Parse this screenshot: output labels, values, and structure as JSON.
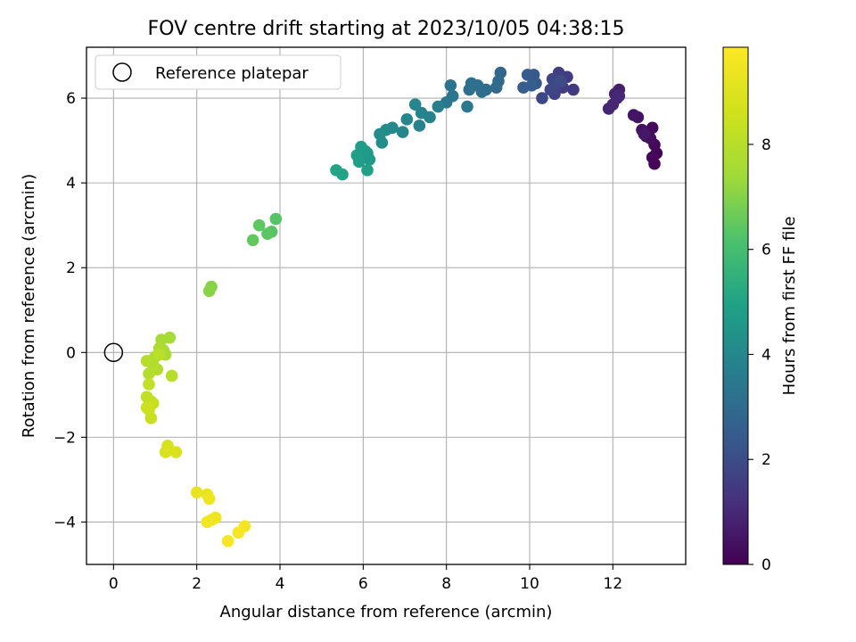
{
  "chart_data": {
    "type": "scatter",
    "title": "FOV centre drift starting at 2023/10/05 04:38:15",
    "xlabel": "Angular distance from reference (arcmin)",
    "ylabel": "Rotation from reference (arcmin)",
    "colorbar_label": "Hours from first FF file",
    "xlim": [
      -0.65,
      13.75
    ],
    "ylim": [
      -5.0,
      7.2
    ],
    "xticks": [
      0,
      2,
      4,
      6,
      8,
      10,
      12
    ],
    "yticks": [
      -4,
      -2,
      0,
      2,
      4,
      6
    ],
    "colorbar_range": [
      0,
      9.85
    ],
    "colorbar_ticks": [
      0,
      2,
      4,
      6,
      8
    ],
    "colormap": "viridis",
    "grid": true,
    "legend": {
      "location": "upper-left",
      "label": "Reference platepar"
    },
    "reference": {
      "x": 0,
      "y": 0
    },
    "points": [
      [
        13.05,
        4.7,
        0.05
      ],
      [
        13.0,
        4.45,
        0.1
      ],
      [
        12.95,
        4.6,
        0.15
      ],
      [
        13.0,
        4.9,
        0.2
      ],
      [
        12.95,
        5.3,
        0.25
      ],
      [
        12.9,
        5.05,
        0.3
      ],
      [
        12.8,
        5.1,
        0.35
      ],
      [
        12.7,
        5.25,
        0.4
      ],
      [
        12.6,
        5.55,
        0.45
      ],
      [
        12.5,
        5.6,
        0.5
      ],
      [
        12.75,
        5.15,
        0.55
      ],
      [
        12.15,
        6.2,
        0.75
      ],
      [
        12.1,
        6.0,
        0.8
      ],
      [
        12.05,
        6.1,
        0.85
      ],
      [
        11.9,
        5.75,
        0.9
      ],
      [
        12.0,
        5.85,
        0.95
      ],
      [
        12.15,
        6.05,
        1.0
      ],
      [
        11.05,
        6.2,
        1.45
      ],
      [
        10.9,
        6.5,
        1.5
      ],
      [
        10.8,
        6.25,
        1.55
      ],
      [
        10.7,
        6.6,
        1.6
      ],
      [
        10.65,
        6.3,
        1.65
      ],
      [
        10.6,
        6.1,
        1.7
      ],
      [
        10.55,
        6.45,
        1.75
      ],
      [
        10.5,
        6.2,
        1.8
      ],
      [
        10.3,
        6.0,
        1.85
      ],
      [
        10.6,
        6.35,
        1.9
      ],
      [
        10.75,
        6.4,
        1.95
      ],
      [
        10.15,
        6.35,
        2.35
      ],
      [
        10.1,
        6.55,
        2.4
      ],
      [
        9.95,
        6.55,
        2.45
      ],
      [
        9.85,
        6.25,
        2.5
      ],
      [
        10.05,
        6.3,
        2.55
      ],
      [
        9.3,
        6.6,
        2.85
      ],
      [
        9.25,
        6.4,
        2.9
      ],
      [
        9.2,
        6.25,
        2.95
      ],
      [
        8.95,
        6.2,
        3.0
      ],
      [
        8.85,
        6.15,
        3.05
      ],
      [
        8.75,
        6.3,
        3.1
      ],
      [
        8.6,
        6.35,
        3.15
      ],
      [
        8.55,
        6.2,
        3.2
      ],
      [
        8.1,
        6.3,
        3.3
      ],
      [
        8.15,
        6.05,
        3.35
      ],
      [
        8.0,
        5.9,
        3.4
      ],
      [
        8.5,
        5.8,
        3.45
      ],
      [
        7.8,
        5.8,
        3.7
      ],
      [
        7.6,
        5.55,
        3.75
      ],
      [
        7.4,
        5.65,
        3.8
      ],
      [
        7.35,
        5.35,
        3.85
      ],
      [
        7.25,
        5.85,
        3.9
      ],
      [
        7.05,
        5.5,
        3.95
      ],
      [
        6.95,
        5.2,
        4.0
      ],
      [
        6.7,
        5.3,
        4.05
      ],
      [
        6.55,
        5.25,
        4.1
      ],
      [
        6.4,
        5.15,
        4.15
      ],
      [
        6.45,
        4.95,
        4.2
      ],
      [
        6.1,
        4.7,
        4.6
      ],
      [
        6.15,
        4.55,
        4.65
      ],
      [
        6.05,
        4.75,
        4.7
      ],
      [
        5.95,
        4.85,
        4.75
      ],
      [
        5.85,
        4.65,
        4.8
      ],
      [
        5.9,
        4.5,
        4.85
      ],
      [
        6.1,
        4.3,
        4.9
      ],
      [
        5.5,
        4.2,
        5.0
      ],
      [
        5.35,
        4.3,
        5.05
      ],
      [
        3.9,
        3.15,
        6.3
      ],
      [
        3.8,
        2.85,
        6.35
      ],
      [
        3.7,
        2.8,
        6.4
      ],
      [
        3.5,
        3.0,
        6.45
      ],
      [
        3.35,
        2.65,
        6.5
      ],
      [
        2.35,
        1.55,
        7.0
      ],
      [
        2.3,
        1.45,
        7.05
      ],
      [
        1.35,
        0.35,
        7.5
      ],
      [
        1.15,
        0.3,
        7.55
      ],
      [
        1.2,
        0.05,
        7.6
      ],
      [
        1.25,
        -0.05,
        7.65
      ],
      [
        1.1,
        0.1,
        7.7
      ],
      [
        1.0,
        -0.1,
        7.75
      ],
      [
        0.95,
        -0.3,
        7.8
      ],
      [
        1.05,
        -0.4,
        7.85
      ],
      [
        0.85,
        -0.5,
        7.9
      ],
      [
        0.8,
        -0.2,
        7.95
      ],
      [
        1.4,
        -0.55,
        8.0
      ],
      [
        1.1,
        -0.05,
        8.05
      ],
      [
        0.85,
        -0.75,
        8.2
      ],
      [
        0.8,
        -1.05,
        8.25
      ],
      [
        0.9,
        -1.15,
        8.3
      ],
      [
        0.95,
        -1.2,
        8.35
      ],
      [
        0.85,
        -1.35,
        8.4
      ],
      [
        0.9,
        -1.55,
        8.45
      ],
      [
        0.8,
        -1.3,
        8.5
      ],
      [
        1.3,
        -2.2,
        8.8
      ],
      [
        1.25,
        -2.35,
        8.85
      ],
      [
        1.5,
        -2.35,
        8.9
      ],
      [
        2.0,
        -3.3,
        9.3
      ],
      [
        2.25,
        -3.35,
        9.35
      ],
      [
        2.3,
        -3.45,
        9.4
      ],
      [
        2.45,
        -3.9,
        9.45
      ],
      [
        2.35,
        -3.95,
        9.5
      ],
      [
        2.25,
        -4.0,
        9.55
      ],
      [
        3.15,
        -4.1,
        9.6
      ],
      [
        3.0,
        -4.25,
        9.65
      ],
      [
        2.75,
        -4.45,
        9.7
      ]
    ]
  }
}
